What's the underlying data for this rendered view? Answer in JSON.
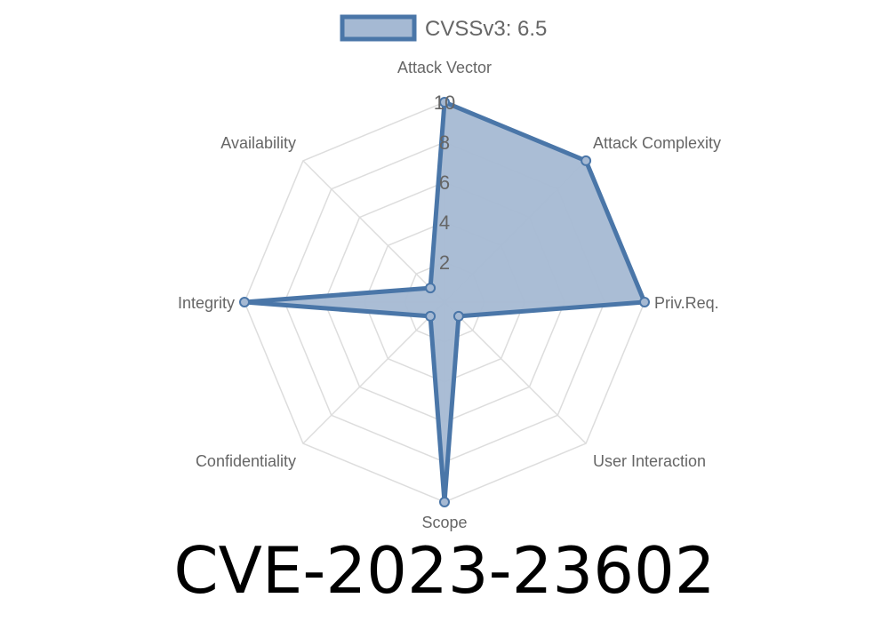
{
  "chart_data": {
    "type": "radar",
    "axes": [
      "Attack Vector",
      "Attack Complexity",
      "Priv.Req.",
      "User Interaction",
      "Scope",
      "Confidentiality",
      "Integrity",
      "Availability"
    ],
    "series": [
      {
        "name": "CVSSv3: 6.5",
        "values": [
          10,
          10,
          10,
          1,
          10,
          1,
          10,
          1
        ]
      }
    ],
    "rlim": [
      0,
      10
    ],
    "ticks": [
      "2",
      "4",
      "6",
      "8",
      "10"
    ],
    "tick_values": [
      2,
      4,
      6,
      8,
      10
    ],
    "legend_position": "top",
    "grid": true,
    "colors": {
      "line": "#4a76a8",
      "fill": "#a5b9d3",
      "grid": "#dddddd",
      "text": "#666666"
    }
  },
  "title": "CVE-2023-23602"
}
